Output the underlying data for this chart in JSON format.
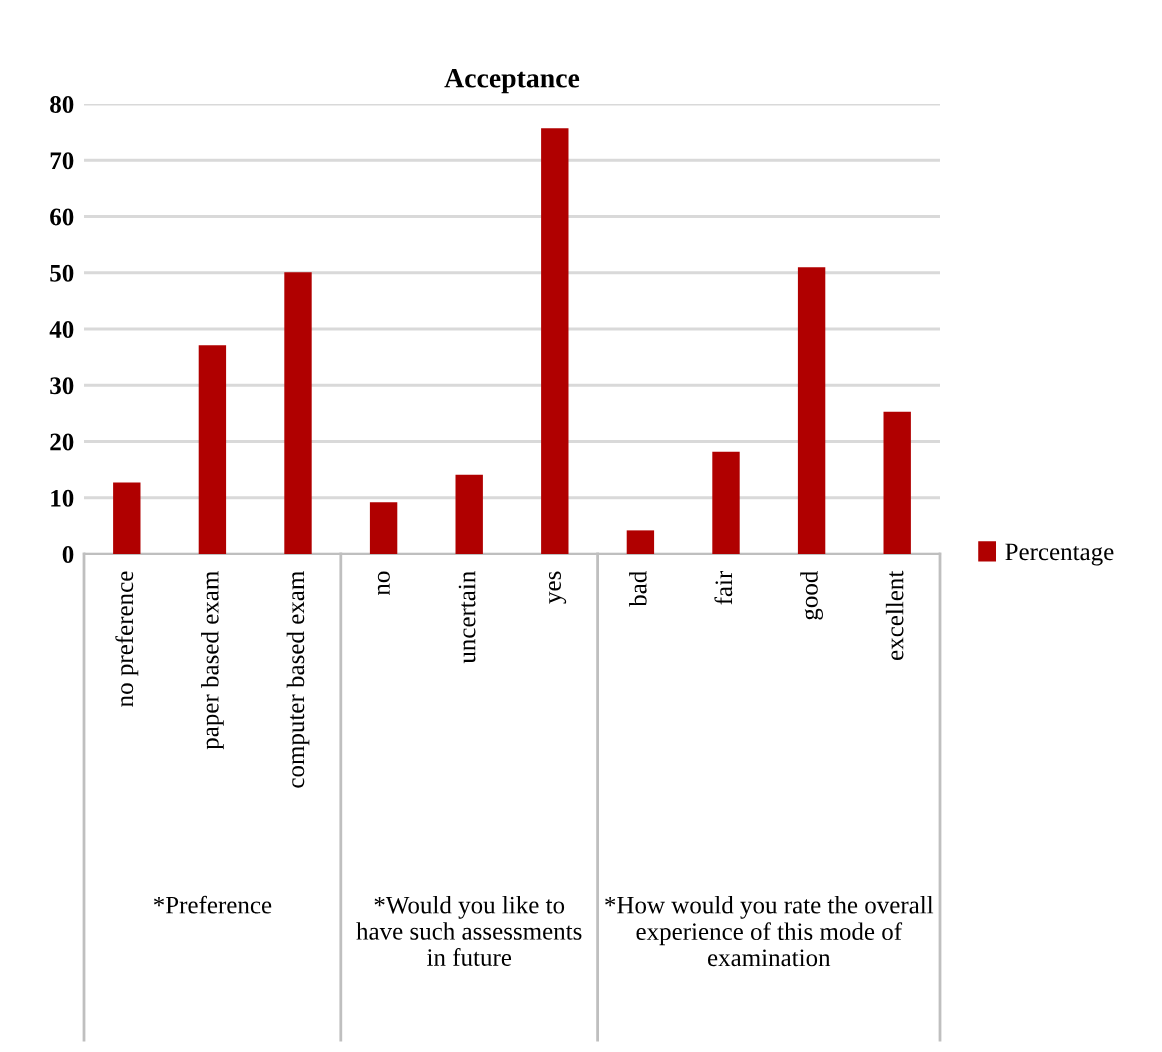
{
  "chart_data": {
    "type": "bar",
    "title": "Acceptance",
    "categories": [
      "no preference",
      "paper based exam",
      "computer based exam",
      "no",
      "uncertain",
      "yes",
      "bad",
      "fair",
      "good",
      "excellent"
    ],
    "series": [
      {
        "name": "Percentage",
        "color": "#b00000",
        "values": [
          12.7,
          37.1,
          50.1,
          9.2,
          14.1,
          75.7,
          4.2,
          18.2,
          51.0,
          25.3
        ]
      }
    ],
    "ylim": [
      0,
      80
    ],
    "yticks": [
      0,
      10,
      20,
      30,
      40,
      50,
      60,
      70,
      80
    ],
    "grid": "y",
    "legend": "right",
    "annotations": [
      "*Preference",
      "*Would you like to have such assessments in future",
      "*How would you rate the overall experience of this mode of examination"
    ]
  }
}
